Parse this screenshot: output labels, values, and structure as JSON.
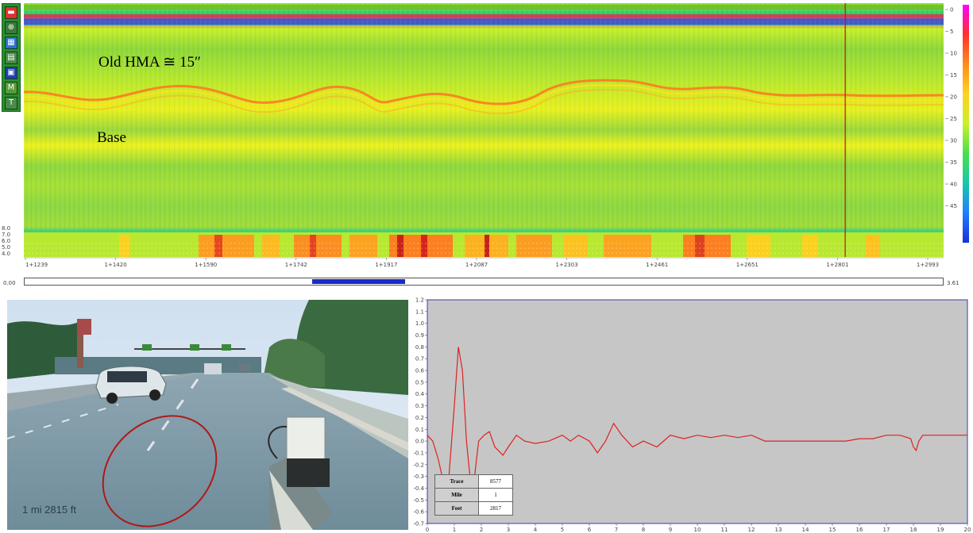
{
  "annotations": {
    "hma_label": "Old HMA ≅ 15″",
    "base_label": "Base"
  },
  "toolbar": {
    "buttons": [
      {
        "icon": "menu-icon",
        "color": "#e03030",
        "glyph": "▬"
      },
      {
        "icon": "zoom-icon",
        "color": "#3a7a3a",
        "glyph": "⊕"
      },
      {
        "icon": "layers-icon",
        "color": "#2f6fd0",
        "glyph": "▦"
      },
      {
        "icon": "grid-icon",
        "color": "#4a8a4a",
        "glyph": "▤"
      },
      {
        "icon": "display-icon",
        "color": "#1f3fb0",
        "glyph": "▣"
      },
      {
        "icon": "marker-icon",
        "color": "#5a9a3a",
        "glyph": "M"
      },
      {
        "icon": "text-icon",
        "color": "#4a8a4a",
        "glyph": "T"
      }
    ]
  },
  "depth_axis": {
    "ticks": [
      "0",
      "5",
      "10",
      "15",
      "20",
      "25",
      "30",
      "35",
      "40",
      "45"
    ],
    "colorbar_colors": [
      "#ff00ff",
      "#ff3030",
      "#ff8c1a",
      "#ffd21f",
      "#c8f02a",
      "#48e04a",
      "#18c8a8",
      "#1f7fff",
      "#1830d8"
    ]
  },
  "strength_axis": {
    "ticks": [
      "8.0",
      "7.0",
      "6.0",
      "5.0",
      "4.0"
    ]
  },
  "station_axis": {
    "ticks": [
      "1+1239",
      "1+1420",
      "1+1590",
      "1+1742",
      "1+1917",
      "1+2087",
      "1+2303",
      "1+2461",
      "1+2651",
      "1+2801",
      "1+2993"
    ]
  },
  "scrollbar": {
    "start": "0.00",
    "end": "3.61",
    "thumb_start_fraction": 0.313,
    "thumb_end_fraction": 0.414
  },
  "photo": {
    "caption": "1 mi  2815 ft"
  },
  "marker": {
    "station_fraction": 0.893
  },
  "info_table": [
    {
      "key": "Trace",
      "value": "8577"
    },
    {
      "key": "Mile",
      "value": "1"
    },
    {
      "key": "Feet",
      "value": "2817"
    }
  ],
  "chart_data": {
    "type": "line",
    "title": "",
    "xlabel": "",
    "ylabel": "",
    "xlim": [
      0,
      20
    ],
    "ylim": [
      -0.7,
      1.2
    ],
    "x_ticks": [
      "0",
      "1",
      "2",
      "3",
      "4",
      "5",
      "6",
      "7",
      "8",
      "9",
      "10",
      "11",
      "12",
      "13",
      "14",
      "15",
      "16",
      "17",
      "18",
      "19",
      "20"
    ],
    "y_ticks": [
      "1.2",
      "1.1",
      "1.0",
      "0.9",
      "0.8",
      "0.7",
      "0.6",
      "0.5",
      "0.4",
      "0.3",
      "0.2",
      "0.1",
      "0.0",
      "-0.1",
      "-0.2",
      "-0.3",
      "-0.4",
      "-0.5",
      "-0.6",
      "-0.7"
    ],
    "series": [
      {
        "color": "#dd2222",
        "x": [
          0,
          0.2,
          0.4,
          0.6,
          0.8,
          1.0,
          1.15,
          1.3,
          1.45,
          1.6,
          1.75,
          1.9,
          2.1,
          2.3,
          2.5,
          2.8,
          3.0,
          3.3,
          3.6,
          4.0,
          4.5,
          5.0,
          5.3,
          5.6,
          6.0,
          6.3,
          6.6,
          6.9,
          7.2,
          7.6,
          8.0,
          8.5,
          9.0,
          9.5,
          10.0,
          10.5,
          11.0,
          11.5,
          12.0,
          12.5,
          13.0,
          13.5,
          14.0,
          14.5,
          15.0,
          15.5,
          16.0,
          16.5,
          17.0,
          17.5,
          17.9,
          18.0,
          18.1,
          18.2,
          18.35,
          18.5,
          19.0,
          19.5,
          20.0
        ],
        "y": [
          0.05,
          0.0,
          -0.15,
          -0.35,
          -0.3,
          0.3,
          0.8,
          0.6,
          0.0,
          -0.35,
          -0.3,
          0.0,
          0.05,
          0.08,
          -0.05,
          -0.12,
          -0.05,
          0.05,
          0.0,
          -0.02,
          0.0,
          0.05,
          0.0,
          0.05,
          0.0,
          -0.1,
          0.0,
          0.15,
          0.05,
          -0.05,
          0.0,
          -0.05,
          0.05,
          0.02,
          0.05,
          0.03,
          0.05,
          0.03,
          0.05,
          0.0,
          0.0,
          0.0,
          0.0,
          0.0,
          0.0,
          0.0,
          0.02,
          0.02,
          0.05,
          0.05,
          0.02,
          -0.05,
          -0.08,
          0.0,
          0.05,
          0.05,
          0.05,
          0.05,
          0.05
        ]
      }
    ]
  }
}
